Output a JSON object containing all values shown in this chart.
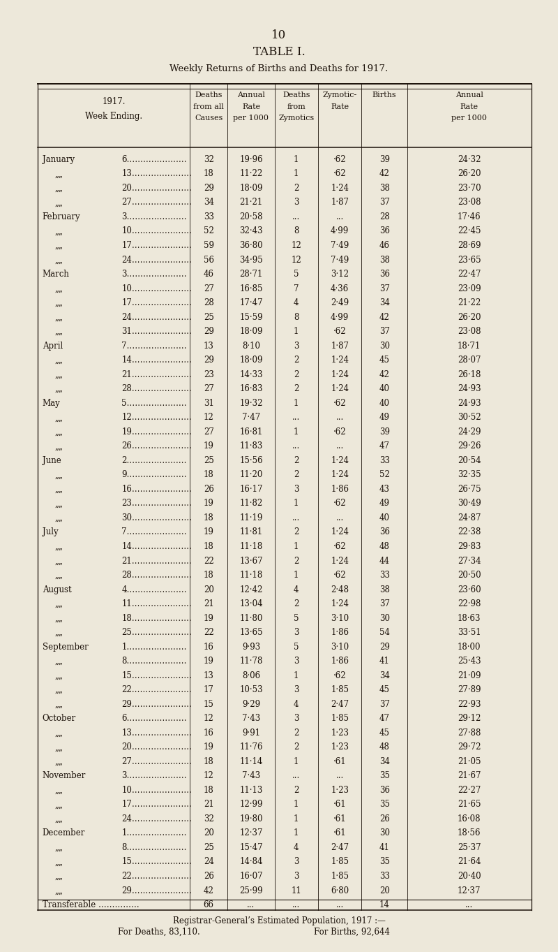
{
  "page_number": "10",
  "table_title": "TABLE I.",
  "subtitle": "Weekly Returns of Births and Deaths for 1917.",
  "bg_color": "#ede8da",
  "text_color": "#1a1008",
  "rows": [
    [
      "January",
      "6………………….",
      "32",
      "19·96",
      "1",
      "·62",
      "39",
      "24·32"
    ],
    [
      "“",
      "13………………….",
      "18",
      "11·22",
      "1",
      "·62",
      "42",
      "26·20"
    ],
    [
      "“",
      "20………………….",
      "29",
      "18·09",
      "2",
      "1·24",
      "38",
      "23·70"
    ],
    [
      "“",
      "27………………….",
      "34",
      "21·21",
      "3",
      "1·87",
      "37",
      "23·08"
    ],
    [
      "February",
      "3………………….",
      "33",
      "20·58",
      "...",
      "...",
      "28",
      "17·46"
    ],
    [
      "“",
      "10………………….",
      "52",
      "32·43",
      "8",
      "4·99",
      "36",
      "22·45"
    ],
    [
      "“",
      "17………………….",
      "59",
      "36·80",
      "12",
      "7·49",
      "46",
      "28·69"
    ],
    [
      "“",
      "24………………….",
      "56",
      "34·95",
      "12",
      "7·49",
      "38",
      "23·65"
    ],
    [
      "March",
      "3………………….",
      "46",
      "28·71",
      "5",
      "3·12",
      "36",
      "22·47"
    ],
    [
      "“",
      "10………………….",
      "27",
      "16·85",
      "7",
      "4·36",
      "37",
      "23·09"
    ],
    [
      "“",
      "17………………….",
      "28",
      "17·47",
      "4",
      "2·49",
      "34",
      "21·22"
    ],
    [
      "“",
      "24………………….",
      "25",
      "15·59",
      "8",
      "4·99",
      "42",
      "26·20"
    ],
    [
      "“",
      "31………………….",
      "29",
      "18·09",
      "1",
      "·62",
      "37",
      "23·08"
    ],
    [
      "April",
      "7………………….",
      "13",
      "8·10",
      "3",
      "1·87",
      "30",
      "18·71"
    ],
    [
      "“",
      "14………………….",
      "29",
      "18·09",
      "2",
      "1·24",
      "45",
      "28·07"
    ],
    [
      "“",
      "21………………….",
      "23",
      "14·33",
      "2",
      "1·24",
      "42",
      "26·18"
    ],
    [
      "“",
      "28………………….",
      "27",
      "16·83",
      "2",
      "1·24",
      "40",
      "24·93"
    ],
    [
      "May",
      "5………………….",
      "31",
      "19·32",
      "1",
      "·62",
      "40",
      "24·93"
    ],
    [
      "“",
      "12………………….",
      "12",
      "7·47",
      "...",
      "...",
      "49",
      "30·52"
    ],
    [
      "“",
      "19………………….",
      "27",
      "16·81",
      "1",
      "·62",
      "39",
      "24·29"
    ],
    [
      "“",
      "26………………….",
      "19",
      "11·83",
      "...",
      "...",
      "47",
      "29·26"
    ],
    [
      "June",
      "2………………….",
      "25",
      "15·56",
      "2",
      "1·24",
      "33",
      "20·54"
    ],
    [
      "“",
      "9………………….",
      "18",
      "11·20",
      "2",
      "1·24",
      "52",
      "32·35"
    ],
    [
      "“",
      "16………………….",
      "26",
      "16·17",
      "3",
      "1·86",
      "43",
      "26·75"
    ],
    [
      "“",
      "23………………….",
      "19",
      "11·82",
      "1",
      "·62",
      "49",
      "30·49"
    ],
    [
      "“",
      "30………………….",
      "18",
      "11·19",
      "...",
      "...",
      "40",
      "24·87"
    ],
    [
      "July",
      "7………………….",
      "19",
      "11·81",
      "2",
      "1·24",
      "36",
      "22·38"
    ],
    [
      "“",
      "14………………….",
      "18",
      "11·18",
      "1",
      "·62",
      "48",
      "29·83"
    ],
    [
      "“",
      "21………………….",
      "22",
      "13·67",
      "2",
      "1·24",
      "44",
      "27·34"
    ],
    [
      "“",
      "28………………….",
      "18",
      "11·18",
      "1",
      "·62",
      "33",
      "20·50"
    ],
    [
      "August",
      "4………………….",
      "20",
      "12·42",
      "4",
      "2·48",
      "38",
      "23·60"
    ],
    [
      "“",
      "11………………….",
      "21",
      "13·04",
      "2",
      "1·24",
      "37",
      "22·98"
    ],
    [
      "“",
      "18………………….",
      "19",
      "11·80",
      "5",
      "3·10",
      "30",
      "18·63"
    ],
    [
      "“",
      "25………………….",
      "22",
      "13·65",
      "3",
      "1·86",
      "54",
      "33·51"
    ],
    [
      "September",
      "1………………….",
      "16",
      "9·93",
      "5",
      "3·10",
      "29",
      "18·00"
    ],
    [
      "“",
      "8………………….",
      "19",
      "11·78",
      "3",
      "1·86",
      "41",
      "25·43"
    ],
    [
      "“",
      "15………………….",
      "13",
      "8·06",
      "1",
      "·62",
      "34",
      "21·09"
    ],
    [
      "“",
      "22………………….",
      "17",
      "10·53",
      "3",
      "1·85",
      "45",
      "27·89"
    ],
    [
      "“",
      "29………………….",
      "15",
      "9·29",
      "4",
      "2·47",
      "37",
      "22·93"
    ],
    [
      "October",
      "6………………….",
      "12",
      "7·43",
      "3",
      "1·85",
      "47",
      "29·12"
    ],
    [
      "“",
      "13………………….",
      "16",
      "9·91",
      "2",
      "1·23",
      "45",
      "27·88"
    ],
    [
      "“",
      "20………………….",
      "19",
      "11·76",
      "2",
      "1·23",
      "48",
      "29·72"
    ],
    [
      "“",
      "27………………….",
      "18",
      "11·14",
      "1",
      "·61",
      "34",
      "21·05"
    ],
    [
      "November",
      "3………………….",
      "12",
      "7·43",
      "...",
      "...",
      "35",
      "21·67"
    ],
    [
      "“",
      "10………………….",
      "18",
      "11·13",
      "2",
      "1·23",
      "36",
      "22·27"
    ],
    [
      "“",
      "17………………….",
      "21",
      "12·99",
      "1",
      "·61",
      "35",
      "21·65"
    ],
    [
      "“",
      "24………………….",
      "32",
      "19·80",
      "1",
      "·61",
      "26",
      "16·08"
    ],
    [
      "December",
      "1………………….",
      "20",
      "12·37",
      "1",
      "·61",
      "30",
      "18·56"
    ],
    [
      "“",
      "8………………….",
      "25",
      "15·47",
      "4",
      "2·47",
      "41",
      "25·37"
    ],
    [
      "“",
      "15………………….",
      "24",
      "14·84",
      "3",
      "1·85",
      "35",
      "21·64"
    ],
    [
      "“",
      "22………………….",
      "26",
      "16·07",
      "3",
      "1·85",
      "33",
      "20·40"
    ],
    [
      "“",
      "29………………….",
      "42",
      "25·99",
      "11",
      "6·80",
      "20",
      "12·37"
    ]
  ],
  "transferable_row": [
    "Transferable ……………",
    "",
    "66",
    "...",
    "...",
    "...",
    "14",
    "..."
  ],
  "footer_line1": "Registrar-General’s Estimated Population, 1917 :—",
  "footer_line2": "For Deaths, 83,110.",
  "footer_line3": "For Births, 92,644"
}
